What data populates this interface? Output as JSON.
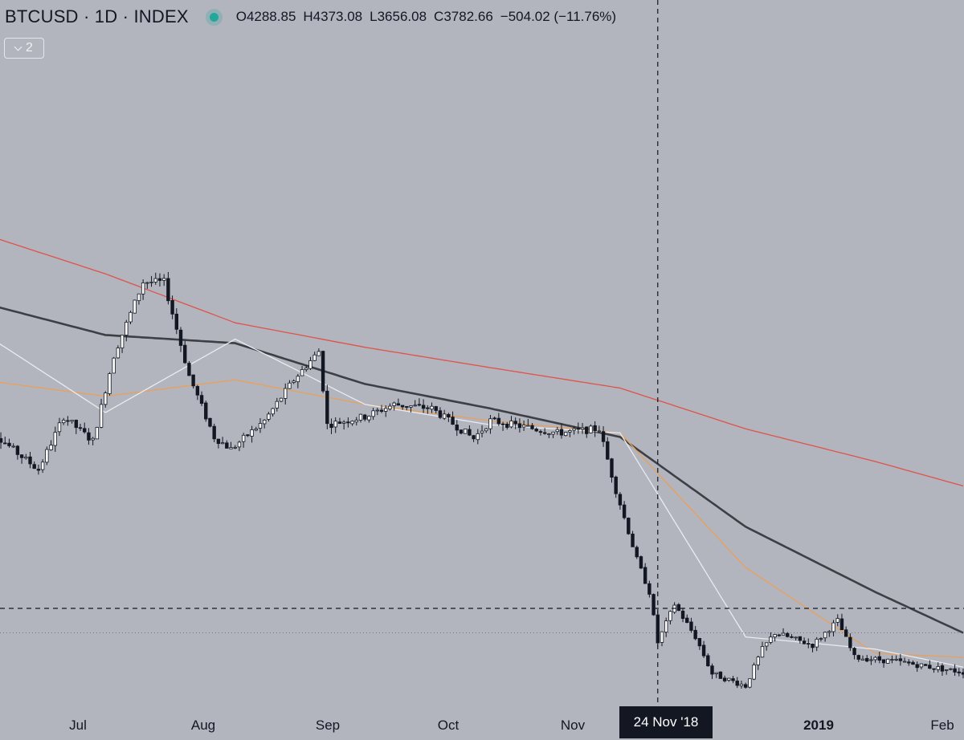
{
  "legend": {
    "symbol": "BTCUSD · 1D · INDEX",
    "open": "O4288.85",
    "high": "H4373.08",
    "low": "L3656.08",
    "close": "C3782.66",
    "change": "−504.02 (−11.76%)"
  },
  "indicators_toggle": {
    "count": "2"
  },
  "time_axis": {
    "ticks": [
      {
        "label": "Jul",
        "bold": false
      },
      {
        "label": "Aug",
        "bold": false
      },
      {
        "label": "Sep",
        "bold": false
      },
      {
        "label": "Oct",
        "bold": false
      },
      {
        "label": "Nov",
        "bold": false
      },
      {
        "label": "2019",
        "bold": true
      },
      {
        "label": "Feb",
        "bold": false
      }
    ],
    "crosshair_label": "24 Nov '18"
  },
  "colors": {
    "background": "#b2b5be",
    "candle_up": "#ffffff",
    "candle_down": "#131722",
    "ma_white": "#e9ebf0",
    "ma_orange": "#e8a05a",
    "ma_dark": "#3d3f45",
    "ma_red": "#e0524a",
    "status_dot": "#26a69a"
  },
  "chart_data": {
    "type": "candlestick",
    "ylim": [
      3000,
      9000
    ],
    "date_range": [
      "2018-06-15",
      "2019-02-05"
    ],
    "crosshair": {
      "date": "2018-11-24",
      "price": 4200
    },
    "reference_price": 3900,
    "ohlc_sampled": [
      {
        "date": "2018-06-16",
        "close": 6450
      },
      {
        "date": "2018-06-24",
        "close": 6100
      },
      {
        "date": "2018-06-29",
        "close": 5900
      },
      {
        "date": "2018-07-05",
        "close": 6550
      },
      {
        "date": "2018-07-12",
        "close": 6250
      },
      {
        "date": "2018-07-17",
        "close": 7300
      },
      {
        "date": "2018-07-24",
        "close": 8200
      },
      {
        "date": "2018-07-29",
        "close": 8200
      },
      {
        "date": "2018-08-04",
        "close": 7050
      },
      {
        "date": "2018-08-10",
        "close": 6300
      },
      {
        "date": "2018-08-14",
        "close": 6150
      },
      {
        "date": "2018-08-22",
        "close": 6500
      },
      {
        "date": "2018-08-29",
        "close": 7000
      },
      {
        "date": "2018-09-04",
        "close": 7350
      },
      {
        "date": "2018-09-06",
        "close": 6450
      },
      {
        "date": "2018-09-15",
        "close": 6550
      },
      {
        "date": "2018-09-22",
        "close": 6700
      },
      {
        "date": "2018-10-01",
        "close": 6650
      },
      {
        "date": "2018-10-11",
        "close": 6280
      },
      {
        "date": "2018-10-15",
        "close": 6500
      },
      {
        "date": "2018-10-31",
        "close": 6350
      },
      {
        "date": "2018-11-10",
        "close": 6400
      },
      {
        "date": "2018-11-14",
        "close": 5650
      },
      {
        "date": "2018-11-19",
        "close": 4800
      },
      {
        "date": "2018-11-22",
        "close": 4400
      },
      {
        "date": "2018-11-24",
        "close": 3782.66
      },
      {
        "date": "2018-11-28",
        "close": 4250
      },
      {
        "date": "2018-12-03",
        "close": 3850
      },
      {
        "date": "2018-12-07",
        "close": 3400
      },
      {
        "date": "2018-12-15",
        "close": 3250
      },
      {
        "date": "2018-12-19",
        "close": 3700
      },
      {
        "date": "2018-12-22",
        "close": 3900
      },
      {
        "date": "2018-12-31",
        "close": 3750
      },
      {
        "date": "2019-01-06",
        "close": 4050
      },
      {
        "date": "2019-01-10",
        "close": 3600
      },
      {
        "date": "2019-01-20",
        "close": 3550
      },
      {
        "date": "2019-02-01",
        "close": 3450
      },
      {
        "date": "2019-02-05",
        "close": 3420
      }
    ],
    "series": [
      {
        "points": [
          {
            "date": "2018-06-15",
            "value": 8800
          },
          {
            "date": "2018-07-15",
            "value": 8300
          },
          {
            "date": "2018-08-15",
            "value": 7700
          },
          {
            "date": "2018-09-15",
            "value": 7400
          },
          {
            "date": "2018-10-15",
            "value": 7150
          },
          {
            "date": "2018-11-15",
            "value": 6900
          },
          {
            "date": "2018-12-15",
            "value": 6400
          },
          {
            "date": "2019-01-15",
            "value": 6000
          },
          {
            "date": "2019-02-05",
            "value": 5700
          }
        ]
      },
      {
        "points": [
          {
            "date": "2018-06-15",
            "value": 7950
          },
          {
            "date": "2018-07-15",
            "value": 7550
          },
          {
            "date": "2018-08-15",
            "value": 7450
          },
          {
            "date": "2018-09-15",
            "value": 6950
          },
          {
            "date": "2018-10-15",
            "value": 6650
          },
          {
            "date": "2018-11-15",
            "value": 6300
          },
          {
            "date": "2018-12-15",
            "value": 5200
          },
          {
            "date": "2019-01-15",
            "value": 4400
          },
          {
            "date": "2019-02-05",
            "value": 3900
          }
        ]
      },
      {
        "points": [
          {
            "date": "2018-06-15",
            "value": 7000
          },
          {
            "date": "2018-07-15",
            "value": 6800
          },
          {
            "date": "2018-08-15",
            "value": 7000
          },
          {
            "date": "2018-09-15",
            "value": 6700
          },
          {
            "date": "2018-10-15",
            "value": 6500
          },
          {
            "date": "2018-11-15",
            "value": 6350
          },
          {
            "date": "2018-12-15",
            "value": 4700
          },
          {
            "date": "2019-01-15",
            "value": 3650
          },
          {
            "date": "2019-02-05",
            "value": 3600
          }
        ]
      },
      {
        "points": [
          {
            "date": "2018-06-15",
            "value": 7600
          },
          {
            "date": "2018-07-15",
            "value": 6600
          },
          {
            "date": "2018-08-15",
            "value": 7500
          },
          {
            "date": "2018-09-15",
            "value": 6700
          },
          {
            "date": "2018-10-15",
            "value": 6450
          },
          {
            "date": "2018-11-15",
            "value": 6350
          },
          {
            "date": "2018-12-15",
            "value": 3850
          },
          {
            "date": "2019-01-15",
            "value": 3700
          },
          {
            "date": "2019-02-05",
            "value": 3480
          }
        ]
      }
    ]
  }
}
